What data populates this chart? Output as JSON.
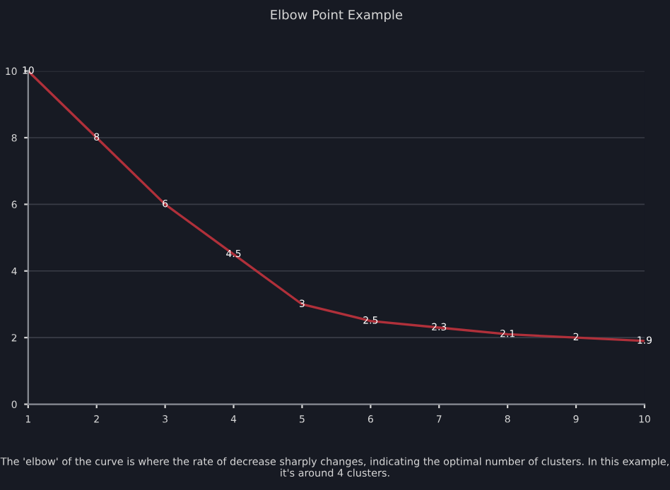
{
  "chart_data": {
    "type": "line",
    "title": "Elbow Point Example",
    "x": [
      1,
      2,
      3,
      4,
      5,
      6,
      7,
      8,
      9,
      10
    ],
    "series": [
      {
        "color": "#b0303a",
        "values": [
          10,
          8,
          6,
          4.5,
          3,
          2.5,
          2.3,
          2.1,
          2,
          1.9
        ]
      }
    ],
    "xlim": [
      1,
      10
    ],
    "xticks": [
      1,
      2,
      3,
      4,
      5,
      6,
      7,
      8,
      9,
      10
    ],
    "ylim": [
      0,
      10
    ],
    "yticks": [
      0,
      2,
      4,
      6,
      8,
      10
    ],
    "grid": "y",
    "data_labels": true,
    "marker": "none",
    "line_style": "solid",
    "annotations": [
      "The 'elbow' of the curve is where the rate of decrease sharply changes, indicating the optimal number of clusters. In this example, it's around 4 clusters."
    ]
  }
}
